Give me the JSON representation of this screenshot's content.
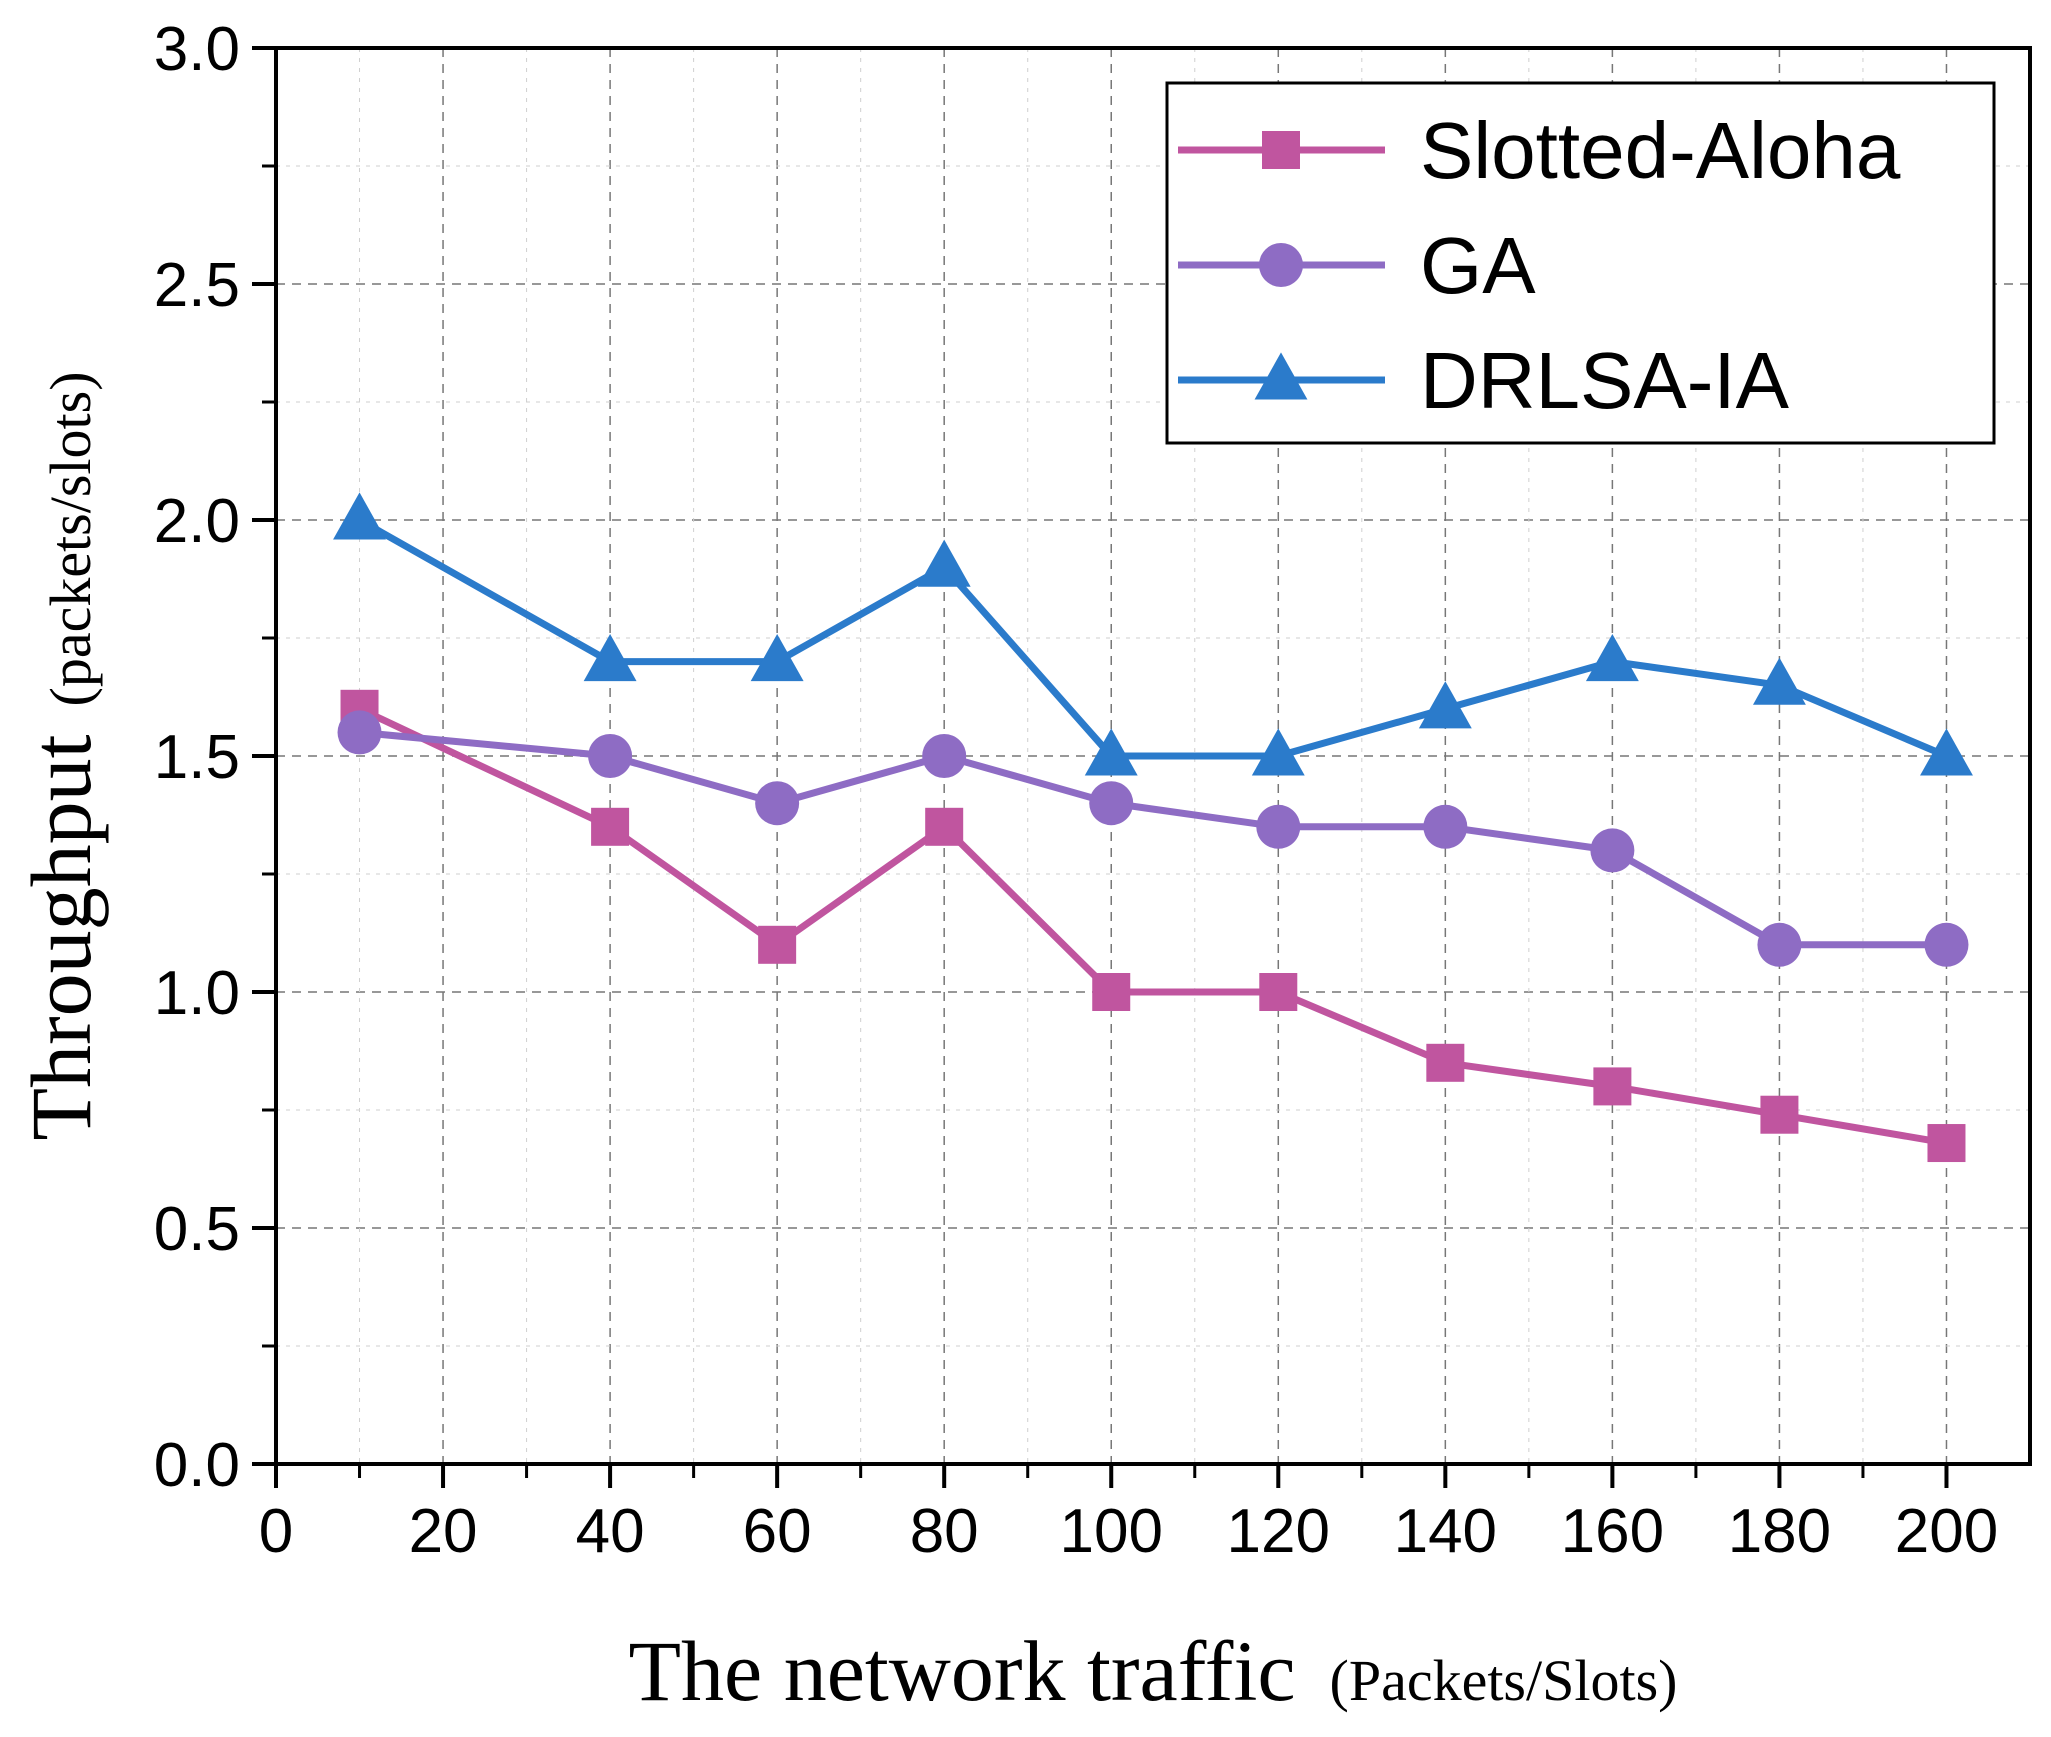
{
  "chart_data": {
    "type": "line",
    "title": "",
    "xlabel": "The network traffic",
    "xlabel_unit": "(Packets/Slots)",
    "ylabel": "Throughput",
    "ylabel_unit": "(packets/slots)",
    "xlim": [
      0,
      210
    ],
    "ylim": [
      0.0,
      3.0
    ],
    "xticks": [
      0,
      20,
      40,
      60,
      80,
      100,
      120,
      140,
      160,
      180,
      200
    ],
    "yticks": [
      0.0,
      0.5,
      1.0,
      1.5,
      2.0,
      2.5,
      3.0
    ],
    "xtick_labels": [
      "0",
      "20",
      "40",
      "60",
      "80",
      "100",
      "120",
      "140",
      "160",
      "180",
      "200"
    ],
    "ytick_labels": [
      "0.0",
      "0.5",
      "1.0",
      "1.5",
      "2.0",
      "2.5",
      "3.0"
    ],
    "grid": true,
    "legend_position": "top-right",
    "x": [
      10,
      40,
      60,
      80,
      100,
      120,
      140,
      160,
      180,
      200
    ],
    "series": [
      {
        "name": "Slotted-Aloha",
        "color": "#c0559f",
        "marker": "square",
        "values": [
          1.6,
          1.35,
          1.1,
          1.35,
          1.0,
          1.0,
          0.85,
          0.8,
          0.74,
          0.68
        ]
      },
      {
        "name": "GA",
        "color": "#8e6cc4",
        "marker": "circle",
        "values": [
          1.55,
          1.5,
          1.4,
          1.5,
          1.4,
          1.35,
          1.35,
          1.3,
          1.1,
          1.1
        ]
      },
      {
        "name": "DRLSA-IA",
        "color": "#2b7bcb",
        "marker": "triangle",
        "values": [
          2.0,
          1.7,
          1.7,
          1.9,
          1.5,
          1.5,
          1.6,
          1.7,
          1.65,
          1.5
        ]
      }
    ]
  }
}
